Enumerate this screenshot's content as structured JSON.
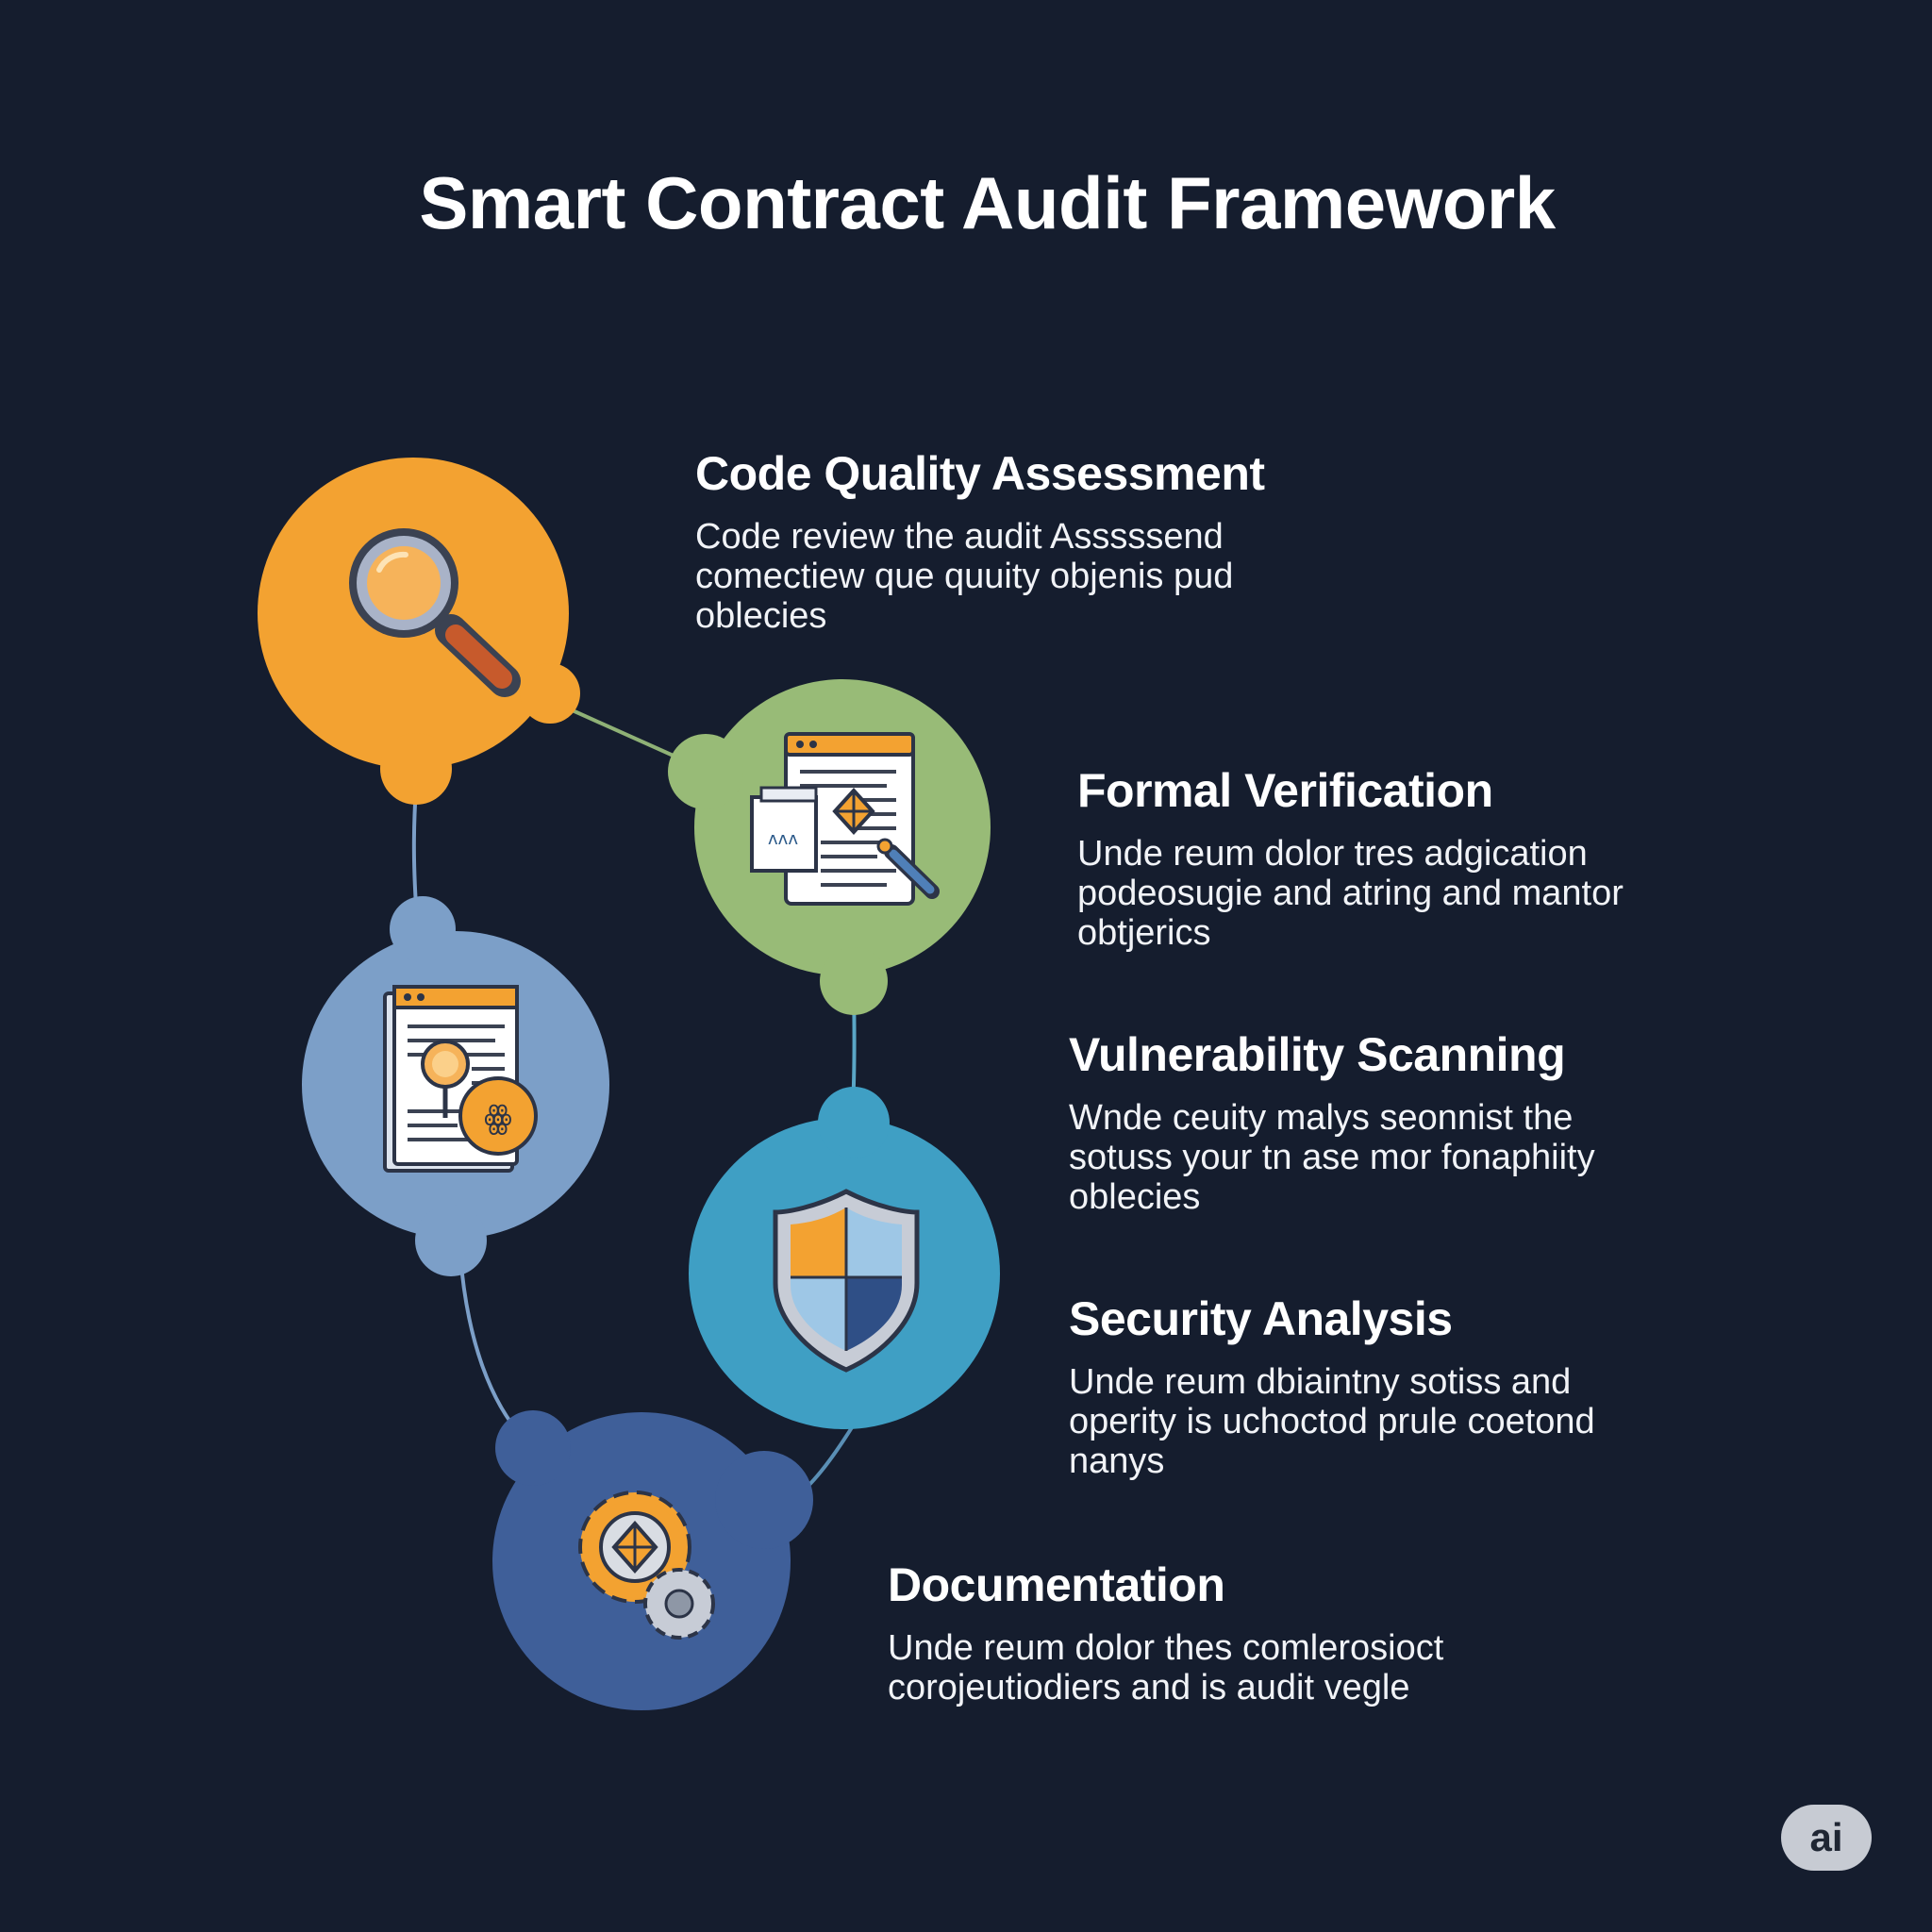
{
  "title": "Smart Contract Audit Framework",
  "steps": [
    {
      "title": "Code Quality Assessment",
      "description": "Code review the audit Asssssend comectiew que quuity objenis pud oblecies",
      "color": "#f3a231",
      "icon": "magnifier-icon"
    },
    {
      "title": "Formal Verification",
      "description": "Unde reum dolor tres adgication podeosugie and atring and mantor obtjerics",
      "color": "#98bb77",
      "icon": "code-document-icon"
    },
    {
      "title": "Vulnerability Scanning",
      "description": "Wnde ceuity malys seonnist the sotuss your tn ase mor fonaphiity oblecies",
      "color": "#7c9fc8",
      "icon": "document-bug-icon"
    },
    {
      "title": "Security Analysis",
      "description": "Unde reum dbiaintny sotiss and operity is uchoctod prule coetond nanys",
      "color": "#3f9fc4",
      "icon": "shield-icon"
    },
    {
      "title": "Documentation",
      "description": "Unde reum dolor thes comlerosioct corojeutiodiers and is audit vegle",
      "color": "#3f5f99",
      "icon": "gears-icon"
    }
  ],
  "badge": "ai"
}
